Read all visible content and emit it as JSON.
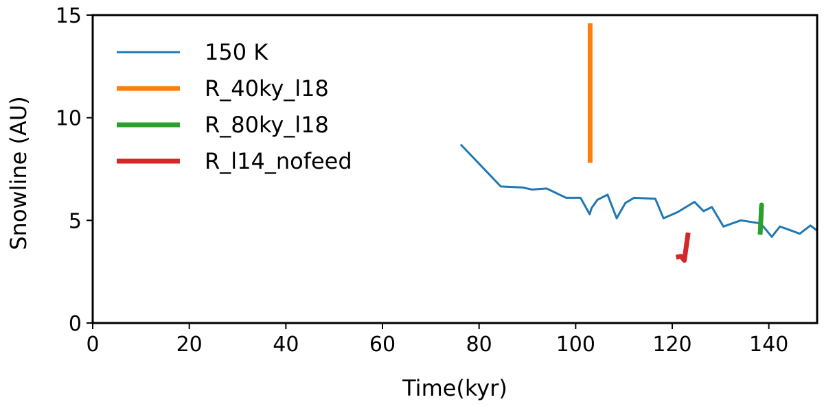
{
  "chart_data": {
    "type": "line",
    "title": "",
    "xlabel": "Time(kyr)",
    "ylabel": "Snowline (AU)",
    "xlim": [
      0,
      150
    ],
    "ylim": [
      0,
      15
    ],
    "xticks": [
      0,
      20,
      40,
      60,
      80,
      100,
      120,
      140
    ],
    "yticks": [
      0,
      5,
      10,
      15
    ],
    "grid": false,
    "legend_position": "top-left",
    "series": [
      {
        "name": "150 K",
        "color": "#1f77b4",
        "x": [
          76.2,
          84.5,
          89,
          91,
          94,
          98,
          101,
          102.9,
          103.3,
          104.5,
          106.6,
          108.5,
          110.3,
          112.1,
          116.5,
          118.2,
          121.1,
          124.6,
          126.5,
          128.2,
          130.6,
          134.2,
          138.3,
          139.4,
          140.6,
          142.3,
          144.1,
          146.4,
          148.6,
          150
        ],
        "y": [
          8.7,
          6.65,
          6.6,
          6.5,
          6.55,
          6.1,
          6.1,
          5.3,
          5.6,
          6.0,
          6.25,
          5.1,
          5.85,
          6.1,
          6.05,
          5.1,
          5.4,
          5.9,
          5.45,
          5.65,
          4.7,
          5.0,
          4.85,
          4.55,
          4.2,
          4.7,
          4.55,
          4.35,
          4.75,
          4.5
        ]
      },
      {
        "name": "R_40ky_l18",
        "color": "#ff7f0e",
        "x": [
          103,
          103
        ],
        "y": [
          7.8,
          14.6
        ]
      },
      {
        "name": "R_80ky_l18",
        "color": "#2ca02c",
        "x": [
          138.2,
          138.5,
          138.4
        ],
        "y": [
          4.3,
          5.75,
          5.5
        ]
      },
      {
        "name": "R_l14_nofeed",
        "color": "#d62728",
        "x": [
          120.8,
          121.8,
          122.5,
          123.3
        ],
        "y": [
          3.2,
          3.25,
          3.05,
          4.4
        ]
      }
    ]
  }
}
